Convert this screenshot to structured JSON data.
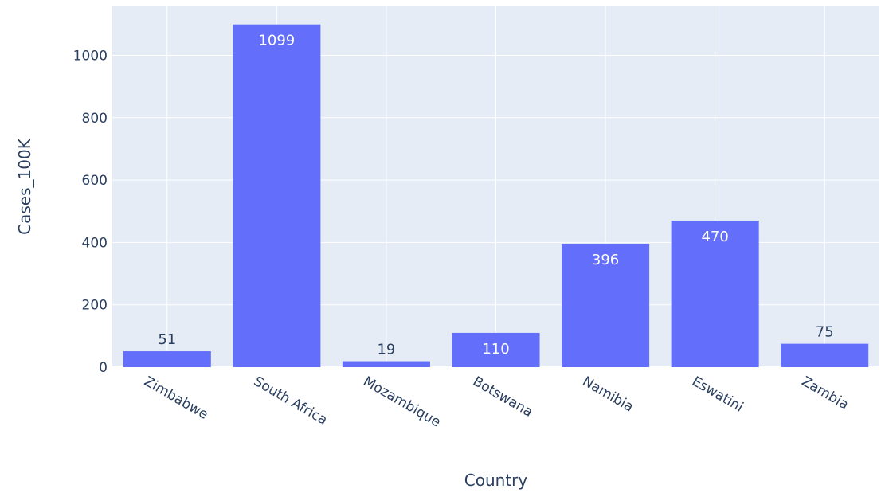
{
  "chart_data": {
    "type": "bar",
    "categories": [
      "Zimbabwe",
      "South Africa",
      "Mozambique",
      "Botswana",
      "Namibia",
      "Eswatini",
      "Zambia"
    ],
    "values": [
      51,
      1099,
      19,
      110,
      396,
      470,
      75
    ],
    "labels": [
      "51",
      "1099",
      "19",
      "110",
      "396",
      "470",
      "75"
    ],
    "title": "",
    "xlabel": "Country",
    "ylabel": "Cases_100K",
    "ylim": [
      0,
      1157
    ],
    "yticks": [
      0,
      200,
      400,
      600,
      800,
      1000
    ],
    "ytick_labels": [
      "0",
      "200",
      "400",
      "600",
      "800",
      "1000"
    ],
    "grid": true,
    "legend": "none",
    "colors": {
      "bar": "#636efa",
      "plot_bg": "#e5ecf6",
      "grid": "#ffffff",
      "text": "#2a3f5f",
      "label_inside": "#ffffff",
      "label_outside": "#2a3f5f"
    }
  }
}
